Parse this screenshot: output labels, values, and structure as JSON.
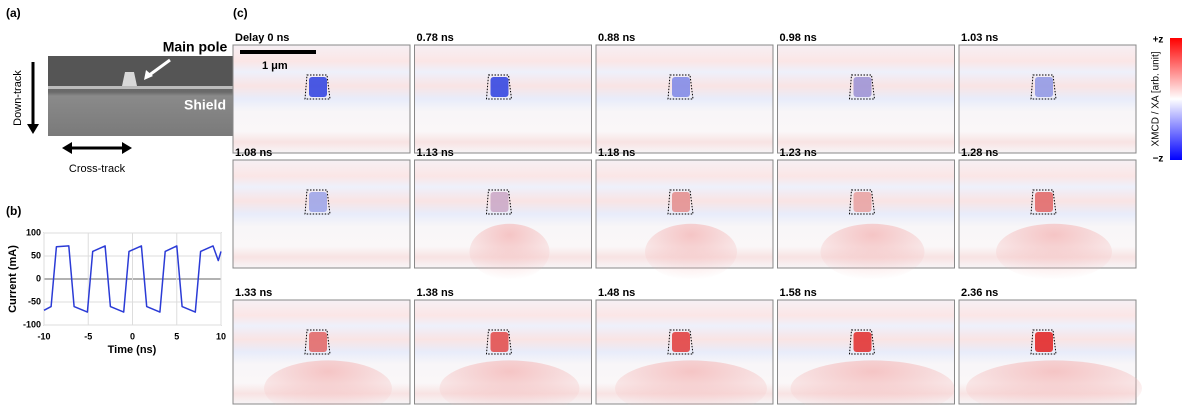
{
  "panel_labels": [
    "(a)",
    "(b)",
    "(c)"
  ],
  "panel_a": {
    "main_pole": "Main pole",
    "shield": "Shield",
    "down_track": "Down-track",
    "cross_track": "Cross-track"
  },
  "chart_data": {
    "type": "line",
    "x_label": "Time (ns)",
    "y_label": "Current (mA)",
    "x": [
      -10,
      -9.2,
      -8.6,
      -7.2,
      -6.6,
      -5.1,
      -4.5,
      -3.1,
      -2.5,
      -1.0,
      -0.4,
      1.0,
      1.6,
      3.1,
      3.7,
      5.0,
      5.6,
      7.1,
      7.7,
      9.1,
      9.7,
      10
    ],
    "values": [
      -68,
      -60,
      70,
      72,
      -60,
      -72,
      60,
      72,
      -60,
      -72,
      60,
      72,
      -60,
      -72,
      60,
      72,
      -60,
      -72,
      60,
      72,
      40,
      60
    ],
    "color": "#2b3bd6",
    "xlim": [
      -10,
      10
    ],
    "ylim": [
      -100,
      100
    ],
    "xticks": [
      -10,
      -5,
      0,
      5,
      10
    ],
    "yticks": [
      -100,
      -50,
      0,
      50,
      100
    ],
    "grid": true
  },
  "panel_c": {
    "scale_bar": "1 μm",
    "frames": [
      "Delay 0 ns",
      "0.78 ns",
      "0.88 ns",
      "0.98 ns",
      "1.03 ns",
      "1.08 ns",
      "1.13 ns",
      "1.18 ns",
      "1.23 ns",
      "1.28 ns",
      "1.33 ns",
      "1.38 ns",
      "1.48 ns",
      "1.58 ns",
      "2.36 ns"
    ]
  },
  "colorbar": {
    "top": "+z",
    "bottom": "−z",
    "label": "XMCD / XA [arb. unit]"
  }
}
